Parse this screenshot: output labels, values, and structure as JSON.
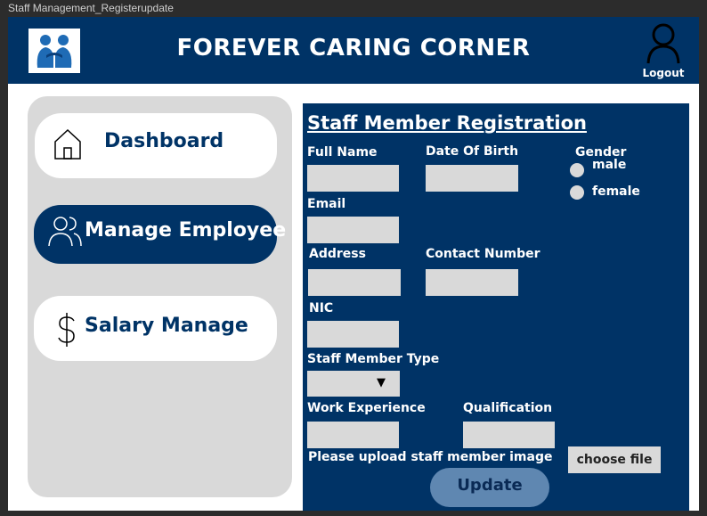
{
  "window_title": "Staff Management_Registerupdate",
  "header": {
    "app_title": "FOREVER CARING CORNER",
    "logout_label": "Logout"
  },
  "sidebar": {
    "items": [
      {
        "label": "Dashboard",
        "icon": "home-icon"
      },
      {
        "label": "Manage Employee",
        "icon": "users-icon",
        "active": true
      },
      {
        "label": "Salary Manage",
        "icon": "dollar-icon"
      }
    ]
  },
  "form": {
    "title": "Staff Member Registration",
    "full_name_label": "Full Name",
    "dob_label": "Date Of Birth",
    "gender_label": "Gender",
    "gender_options": [
      "male",
      "female"
    ],
    "email_label": "Email",
    "address_label": "Address",
    "contact_label": "Contact Number",
    "nic_label": "NIC",
    "staff_type_label": "Staff Member Type",
    "work_exp_label": "Work Experience",
    "qualification_label": "Qualification",
    "upload_label": "Please upload staff member image",
    "choose_file_label": "choose file",
    "update_label": "Update",
    "select_arrow": "▼"
  },
  "colors": {
    "primary": "#003366",
    "input_bg": "#d9d9d9",
    "sidebar_bg": "#d9d9d9",
    "update_button": "#5f87b1"
  }
}
